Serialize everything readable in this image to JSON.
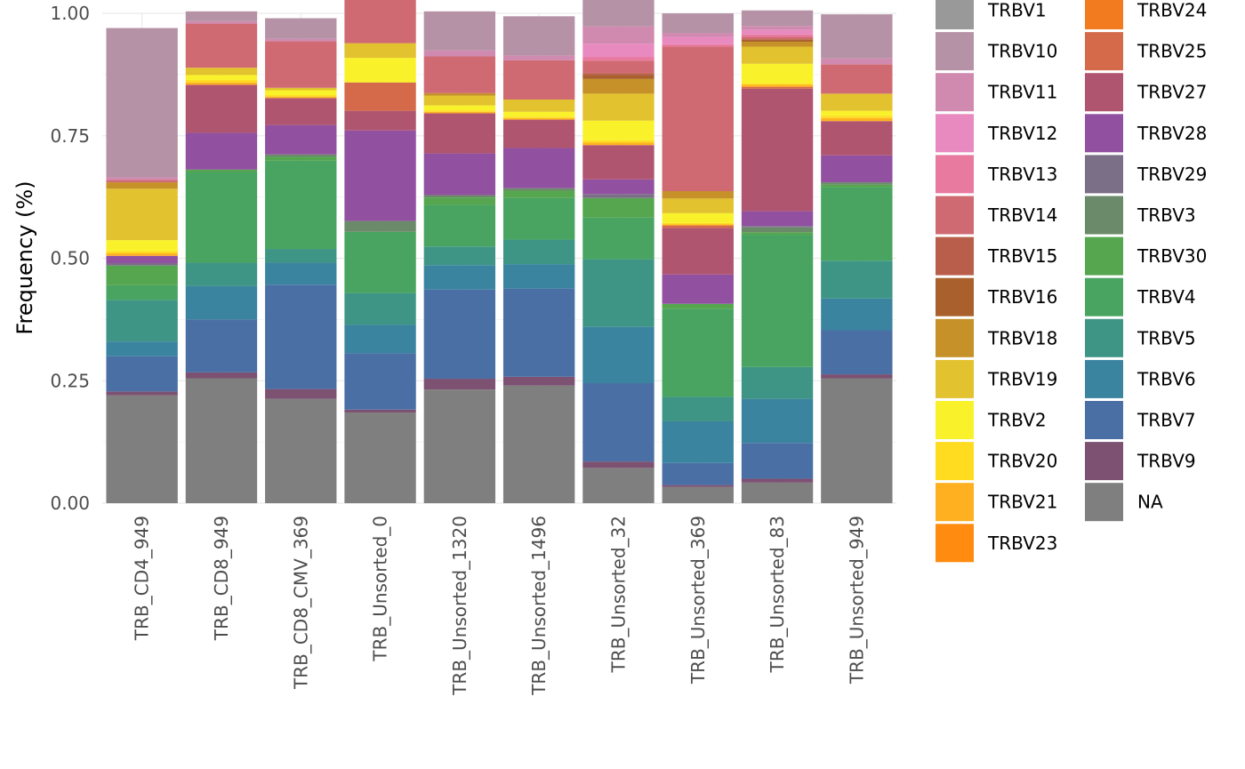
{
  "chart_data": {
    "type": "bar",
    "stacked": true,
    "ylabel": "Frequency (%)",
    "xlabel": "",
    "ylim": [
      0,
      1
    ],
    "yticks": [
      "0.00",
      "0.25",
      "0.50",
      "0.75",
      "1.00"
    ],
    "grid": true,
    "legend_position": "right",
    "legend_columns": 2,
    "categories": [
      "TRB_CD4_949",
      "TRB_CD8_949",
      "TRB_CD8_CMV_369",
      "TRB_Unsorted_0",
      "TRB_Unsorted_1320",
      "TRB_Unsorted_1496",
      "TRB_Unsorted_32",
      "TRB_Unsorted_369",
      "TRB_Unsorted_83",
      "TRB_Unsorted_949"
    ],
    "series": [
      {
        "name": "NA",
        "color": "#7f7f7f",
        "values": [
          0.22,
          0.255,
          0.213,
          0.185,
          0.232,
          0.24,
          0.072,
          0.033,
          0.042,
          0.255
        ]
      },
      {
        "name": "TRBV9",
        "color": "#7c5172",
        "values": [
          0.008,
          0.012,
          0.02,
          0.006,
          0.022,
          0.018,
          0.013,
          0.004,
          0.008,
          0.008
        ]
      },
      {
        "name": "TRBV7",
        "color": "#4a6fa5",
        "values": [
          0.072,
          0.108,
          0.213,
          0.115,
          0.182,
          0.18,
          0.16,
          0.045,
          0.073,
          0.09
        ]
      },
      {
        "name": "TRBV6",
        "color": "#3b84a0",
        "values": [
          0.03,
          0.068,
          0.045,
          0.058,
          0.05,
          0.05,
          0.115,
          0.085,
          0.09,
          0.065
        ]
      },
      {
        "name": "TRBV5",
        "color": "#3f9585",
        "values": [
          0.085,
          0.048,
          0.028,
          0.065,
          0.038,
          0.05,
          0.138,
          0.05,
          0.065,
          0.077
        ]
      },
      {
        "name": "TRBV4",
        "color": "#48a460",
        "values": [
          0.03,
          0.185,
          0.18,
          0.125,
          0.085,
          0.085,
          0.085,
          0.18,
          0.27,
          0.15
        ]
      },
      {
        "name": "TRBV30",
        "color": "#55a64f",
        "values": [
          0.04,
          0.005,
          0.008,
          0.0,
          0.015,
          0.015,
          0.04,
          0.01,
          0.005,
          0.005
        ]
      },
      {
        "name": "TRBV3",
        "color": "#6a8a6a",
        "values": [
          0.0,
          0.0,
          0.005,
          0.022,
          0.005,
          0.005,
          0.0,
          0.0,
          0.01,
          0.005
        ]
      },
      {
        "name": "TRBV29",
        "color": "#7b6f88",
        "values": [
          0.005,
          0.0,
          0.0,
          0.0,
          0.0,
          0.0,
          0.008,
          0.0,
          0.003,
          0.0
        ]
      },
      {
        "name": "TRBV28",
        "color": "#9150a0",
        "values": [
          0.015,
          0.075,
          0.06,
          0.185,
          0.085,
          0.082,
          0.03,
          0.06,
          0.03,
          0.055
        ]
      },
      {
        "name": "TRBV27",
        "color": "#b05570",
        "values": [
          0.0,
          0.098,
          0.055,
          0.04,
          0.082,
          0.058,
          0.07,
          0.095,
          0.25,
          0.07
        ]
      },
      {
        "name": "TRBV25",
        "color": "#d46a4a",
        "values": [
          0.0,
          0.0,
          0.0,
          0.058,
          0.0,
          0.0,
          0.0,
          0.005,
          0.004,
          0.0
        ]
      },
      {
        "name": "TRBV24",
        "color": "#f27b20",
        "values": [
          0.0,
          0.0,
          0.0,
          0.0,
          0.0,
          0.0,
          0.0,
          0.0,
          0.0,
          0.0
        ]
      },
      {
        "name": "TRBV23",
        "color": "#ff8c10",
        "values": [
          0.0,
          0.0,
          0.0,
          0.0,
          0.0,
          0.0,
          0.0,
          0.0,
          0.0,
          0.0
        ]
      },
      {
        "name": "TRBV21",
        "color": "#ffb020",
        "values": [
          0.005,
          0.005,
          0.003,
          0.0,
          0.003,
          0.003,
          0.005,
          0.002,
          0.004,
          0.006
        ]
      },
      {
        "name": "TRBV20",
        "color": "#ffdc20",
        "values": [
          0.005,
          0.005,
          0.003,
          0.0,
          0.003,
          0.003,
          0.005,
          0.003,
          0.003,
          0.005
        ]
      },
      {
        "name": "TRBV2",
        "color": "#f9f22a",
        "values": [
          0.022,
          0.01,
          0.01,
          0.05,
          0.01,
          0.01,
          0.04,
          0.02,
          0.04,
          0.01
        ]
      },
      {
        "name": "TRBV19",
        "color": "#e2c22e",
        "values": [
          0.105,
          0.015,
          0.005,
          0.03,
          0.02,
          0.025,
          0.055,
          0.03,
          0.035,
          0.035
        ]
      },
      {
        "name": "TRBV18",
        "color": "#c59128",
        "values": [
          0.013,
          0.0,
          0.0,
          0.0,
          0.005,
          0.0,
          0.03,
          0.015,
          0.01,
          0.0
        ]
      },
      {
        "name": "TRBV16",
        "color": "#a9602c",
        "values": [
          0.0,
          0.0,
          0.0,
          0.0,
          0.0,
          0.0,
          0.008,
          0.0,
          0.005,
          0.0
        ]
      },
      {
        "name": "TRBV15",
        "color": "#b85e4a",
        "values": [
          0.0,
          0.0,
          0.0,
          0.0,
          0.0,
          0.0,
          0.004,
          0.0,
          0.0,
          0.0
        ]
      },
      {
        "name": "TRBV14",
        "color": "#d06a72",
        "values": [
          0.005,
          0.09,
          0.095,
          0.09,
          0.075,
          0.08,
          0.025,
          0.295,
          0.005,
          0.06
        ]
      },
      {
        "name": "TRBV13",
        "color": "#e87aa0",
        "values": [
          0.0,
          0.0,
          0.0,
          0.0,
          0.0,
          0.0,
          0.008,
          0.005,
          0.005,
          0.0
        ]
      },
      {
        "name": "TRBV12",
        "color": "#e88ac0",
        "values": [
          0.0,
          0.0,
          0.0,
          0.0,
          0.0,
          0.0,
          0.027,
          0.015,
          0.009,
          0.0
        ]
      },
      {
        "name": "TRBV11",
        "color": "#d08ab0",
        "values": [
          0.005,
          0.005,
          0.005,
          0.005,
          0.012,
          0.01,
          0.035,
          0.008,
          0.008,
          0.012
        ]
      },
      {
        "name": "TRBV10",
        "color": "#b592a6",
        "values": [
          0.305,
          0.02,
          0.042,
          0.045,
          0.08,
          0.08,
          0.055,
          0.04,
          0.032,
          0.09
        ]
      },
      {
        "name": "TRBV1",
        "color": "#999999",
        "values": [
          0.0,
          0.0,
          0.0,
          0.0,
          0.0,
          0.0,
          0.0,
          0.0,
          0.0,
          0.0
        ]
      }
    ],
    "legend_order": [
      "TRBV1",
      "TRBV10",
      "TRBV11",
      "TRBV12",
      "TRBV13",
      "TRBV14",
      "TRBV15",
      "TRBV16",
      "TRBV18",
      "TRBV19",
      "TRBV2",
      "TRBV20",
      "TRBV21",
      "TRBV23",
      "TRBV24",
      "TRBV25",
      "TRBV27",
      "TRBV28",
      "TRBV29",
      "TRBV3",
      "TRBV30",
      "TRBV4",
      "TRBV5",
      "TRBV6",
      "TRBV7",
      "TRBV9",
      "NA"
    ]
  }
}
